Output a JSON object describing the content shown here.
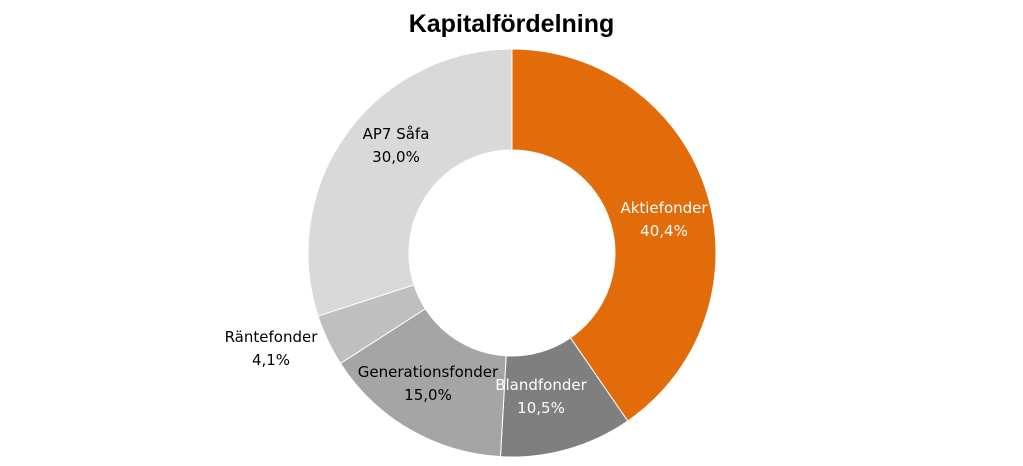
{
  "chart_data": {
    "type": "pie",
    "variant": "donut",
    "title": "Kapitalfördelning",
    "slices": [
      {
        "label": "Aktiefonder",
        "value": 40.4,
        "display": "40,4%",
        "color": "#E36C0A",
        "label_color": "#ffffff"
      },
      {
        "label": "Blandfonder",
        "value": 10.5,
        "display": "10,5%",
        "color": "#7F7F7F",
        "label_color": "#ffffff"
      },
      {
        "label": "Generationsfonder",
        "value": 15.0,
        "display": "15,0%",
        "color": "#A5A5A5",
        "label_color": "#000000"
      },
      {
        "label": "Räntefonder",
        "value": 4.1,
        "display": "4,1%",
        "color": "#BFBFBF",
        "label_color": "#000000"
      },
      {
        "label": "AP7 Såfa",
        "value": 30.0,
        "display": "30,0%",
        "color": "#D9D9D9",
        "label_color": "#000000"
      }
    ]
  }
}
